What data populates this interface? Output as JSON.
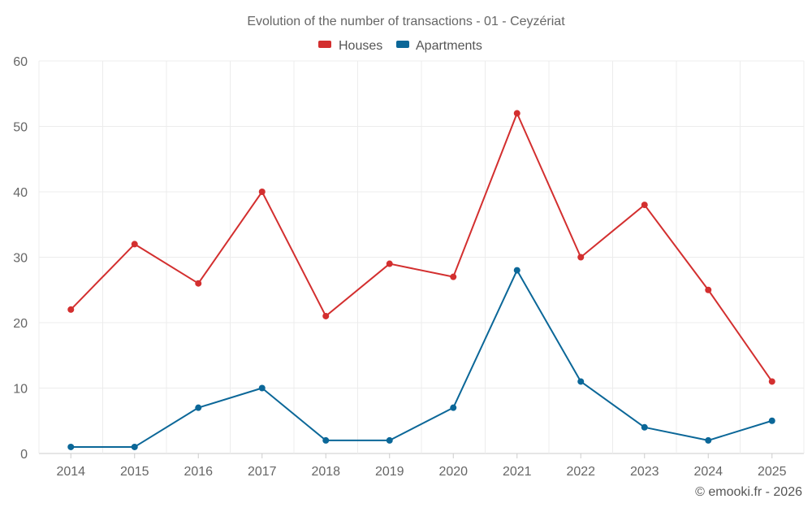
{
  "chart_data": {
    "type": "line",
    "title": "Evolution of the number of transactions - 01 - Ceyzériat",
    "categories": [
      "2014",
      "2015",
      "2016",
      "2017",
      "2018",
      "2019",
      "2020",
      "2021",
      "2022",
      "2023",
      "2024",
      "2025"
    ],
    "series": [
      {
        "name": "Houses",
        "color": "#d32f2f",
        "values": [
          22,
          32,
          26,
          40,
          21,
          29,
          27,
          52,
          30,
          38,
          25,
          11
        ]
      },
      {
        "name": "Apartments",
        "color": "#0b6798",
        "values": [
          1,
          1,
          7,
          10,
          2,
          2,
          7,
          28,
          11,
          4,
          2,
          5
        ]
      }
    ],
    "xlabel": "",
    "ylabel": "",
    "ylim": [
      0,
      60
    ],
    "yticks": [
      0,
      10,
      20,
      30,
      40,
      50,
      60
    ],
    "grid": true,
    "legend_position": "top-center"
  },
  "footer": {
    "credit": "© emooki.fr - 2026"
  }
}
